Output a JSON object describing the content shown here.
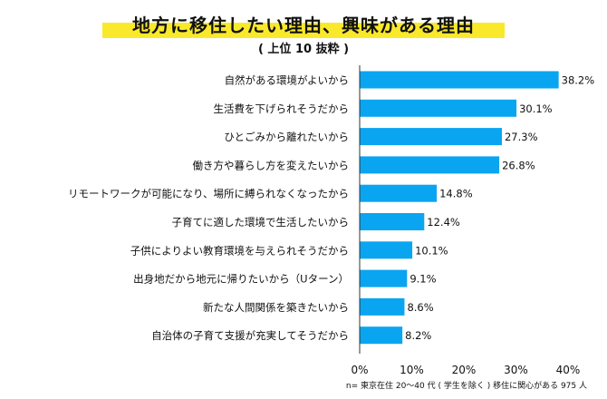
{
  "chart_data": {
    "type": "bar",
    "orientation": "horizontal",
    "title": "地方に移住したい理由、興味がある理由",
    "subtitle": "( 上位 10 抜粋 )",
    "categories": [
      "自然がある環境がよいから",
      "生活費を下げられそうだから",
      "ひとごみから離れたいから",
      "働き方や暮らし方を変えたいから",
      "リモートワークが可能になり、場所に縛られなくなったから",
      "子育てに適した環境で生活したいから",
      "子供によりよい教育環境を与えられそうだから",
      "出身地だから地元に帰りたいから（Uターン）",
      "新たな人間関係を築きたいから",
      "自治体の子育て支援が充実してそうだから"
    ],
    "values": [
      38.2,
      30.1,
      27.3,
      26.8,
      14.8,
      12.4,
      10.1,
      9.1,
      8.6,
      8.2
    ],
    "value_labels": [
      "38.2%",
      "30.1%",
      "27.3%",
      "26.8%",
      "14.8%",
      "12.4%",
      "10.1%",
      "9.1%",
      "8.6%",
      "8.2%"
    ],
    "xlim": [
      0,
      40
    ],
    "xticks": [
      "0%",
      "10%",
      "20%",
      "30%",
      "40%"
    ],
    "note": "n= 東京在住 20〜40 代 ( 学生を除く ) 移住に関心がある 975 人",
    "bar_color": "#0aa5f0"
  }
}
